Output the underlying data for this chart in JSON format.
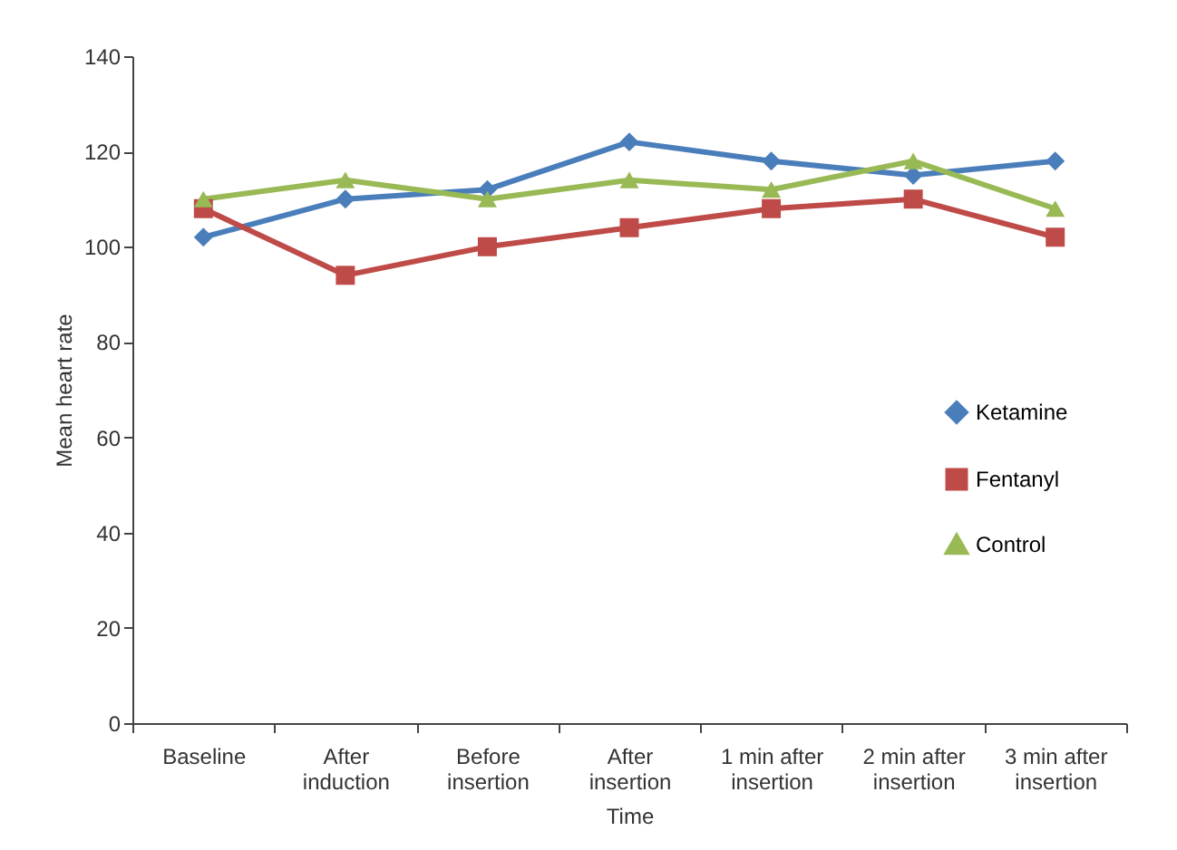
{
  "chart_data": {
    "type": "line",
    "xlabel": "Time",
    "ylabel": "Mean heart rate",
    "categories": [
      "Baseline",
      "After induction",
      "Before insertion",
      "After insertion",
      "1 min after insertion",
      "2 min after insertion",
      "3 min after insertion"
    ],
    "series": [
      {
        "name": "Ketamine",
        "color": "#4a7ebb",
        "marker": "diamond",
        "values": [
          102,
          110,
          112,
          122,
          118,
          115,
          118
        ]
      },
      {
        "name": "Fentanyl",
        "color": "#be4b48",
        "marker": "square",
        "values": [
          108,
          94,
          100,
          104,
          108,
          110,
          102
        ]
      },
      {
        "name": "Control",
        "color": "#98b954",
        "marker": "triangle",
        "values": [
          110,
          114,
          110,
          114,
          112,
          118,
          108
        ]
      }
    ],
    "ylim": [
      0,
      140
    ],
    "yticks": [
      0,
      20,
      40,
      60,
      80,
      100,
      120,
      140
    ],
    "grid": false,
    "legend": "right"
  }
}
